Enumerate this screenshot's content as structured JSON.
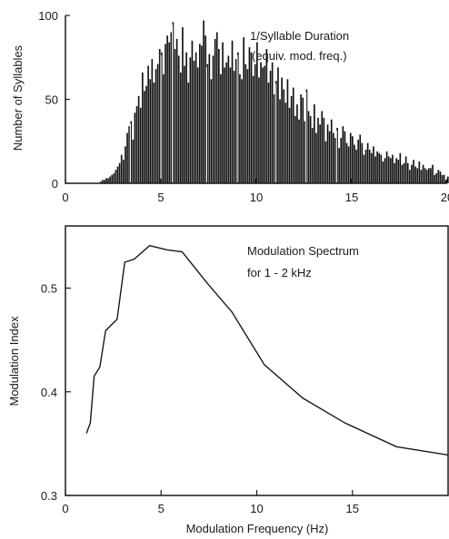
{
  "chart_data": [
    {
      "type": "bar",
      "ylabel": "Number of Syllables",
      "annotation": [
        "1/Syllable Duration",
        "(equiv. mod. freq.)"
      ],
      "xlim": [
        0,
        20
      ],
      "ylim": [
        0,
        100
      ],
      "xticks": [
        "0",
        "5",
        "10",
        "15",
        "20"
      ],
      "yticks": [
        "0",
        "50",
        "100"
      ],
      "bin_width": 0.1,
      "x_start": 1.8,
      "counts": [
        1,
        2,
        2,
        3,
        3,
        4,
        5,
        6,
        8,
        10,
        12,
        17,
        14,
        22,
        30,
        34,
        37,
        26,
        42,
        46,
        52,
        45,
        66,
        55,
        58,
        70,
        62,
        74,
        60,
        68,
        71,
        80,
        78,
        65,
        83,
        88,
        84,
        90,
        96,
        80,
        86,
        76,
        66,
        93,
        70,
        78,
        60,
        75,
        85,
        73,
        78,
        69,
        83,
        82,
        97,
        88,
        71,
        77,
        62,
        76,
        86,
        90,
        80,
        65,
        84,
        69,
        72,
        76,
        69,
        85,
        67,
        74,
        78,
        65,
        62,
        87,
        71,
        68,
        81,
        78,
        64,
        71,
        84,
        63,
        72,
        69,
        70,
        80,
        60,
        67,
        72,
        53,
        61,
        69,
        50,
        63,
        56,
        48,
        62,
        45,
        52,
        57,
        40,
        47,
        38,
        53,
        51,
        37,
        56,
        43,
        40,
        33,
        47,
        30,
        39,
        35,
        43,
        39,
        25,
        35,
        31,
        38,
        30,
        27,
        33,
        21,
        27,
        34,
        31,
        24,
        22,
        30,
        28,
        23,
        20,
        26,
        29,
        24,
        17,
        20,
        24,
        20,
        18,
        22,
        16,
        19,
        18,
        17,
        13,
        15,
        19,
        16,
        15,
        17,
        12,
        15,
        14,
        18,
        11,
        12,
        16,
        12,
        8,
        11,
        14,
        10,
        9,
        13,
        8,
        11,
        9,
        8,
        9,
        9,
        11,
        5,
        6,
        8,
        7,
        5,
        5,
        2,
        4,
        5,
        4,
        3,
        7,
        5,
        3,
        4,
        2,
        6
      ],
      "white_gaps": [
        3.4,
        5.0,
        5.6,
        7.4,
        9.0,
        11.0,
        12.6,
        14.2
      ]
    },
    {
      "type": "line",
      "xlabel": "Modulation Frequency (Hz)",
      "ylabel": "Modulation Index",
      "annotation": [
        "Modulation Spectrum",
        "for 1 - 2 kHz"
      ],
      "xlim": [
        0,
        20
      ],
      "ylim": [
        0.3,
        0.56
      ],
      "xticks": [
        "0",
        "5",
        "10",
        "15"
      ],
      "yticks": [
        "0.3",
        "0.4",
        "0.5"
      ],
      "x": [
        1.1,
        1.3,
        1.5,
        1.8,
        2.1,
        2.7,
        3.1,
        3.6,
        4.4,
        5.3,
        6.1,
        7.4,
        8.7,
        10.4,
        12.4,
        14.6,
        17.3,
        20.0
      ],
      "y": [
        0.36,
        0.37,
        0.415,
        0.424,
        0.459,
        0.47,
        0.525,
        0.528,
        0.541,
        0.537,
        0.535,
        0.505,
        0.477,
        0.426,
        0.394,
        0.37,
        0.347,
        0.339
      ]
    }
  ]
}
